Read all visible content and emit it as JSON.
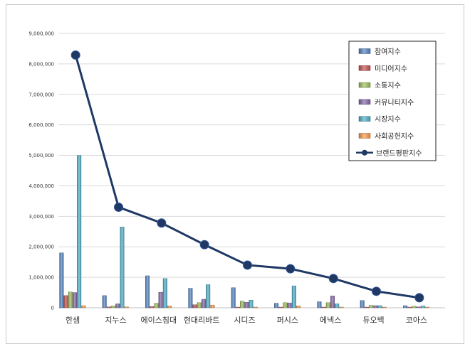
{
  "chart_data": {
    "type": "bar",
    "categories": [
      "한샘",
      "지누스",
      "에이스침대",
      "현대리바트",
      "시디즈",
      "퍼시스",
      "에넥스",
      "듀오백",
      "코아스"
    ],
    "ylim": [
      0,
      9000000
    ],
    "yticks": [
      "0",
      "1,000,000",
      "2,000,000",
      "3,000,000",
      "4,000,000",
      "5,000,000",
      "6,000,000",
      "7,000,000",
      "8,000,000",
      "9,000,000"
    ],
    "grid": true,
    "legend_position": "top-right",
    "series": [
      {
        "name": "참여지수",
        "color": "#4f81bd",
        "values": [
          1800000,
          400000,
          1050000,
          640000,
          660000,
          150000,
          200000,
          240000,
          70000
        ]
      },
      {
        "name": "미디어지수",
        "color": "#c0504d",
        "values": [
          400000,
          30000,
          40000,
          100000,
          20000,
          20000,
          20000,
          20000,
          10000
        ]
      },
      {
        "name": "소통지수",
        "color": "#9bbb59",
        "values": [
          520000,
          60000,
          150000,
          170000,
          220000,
          170000,
          170000,
          80000,
          50000
        ]
      },
      {
        "name": "커뮤니티지수",
        "color": "#8064a2",
        "values": [
          500000,
          130000,
          510000,
          280000,
          180000,
          160000,
          390000,
          70000,
          30000
        ]
      },
      {
        "name": "시장지수",
        "color": "#4bacc6",
        "values": [
          5000000,
          2650000,
          960000,
          760000,
          250000,
          720000,
          130000,
          70000,
          60000
        ]
      },
      {
        "name": "사회공헌지수",
        "color": "#f79646",
        "values": [
          70000,
          30000,
          60000,
          90000,
          20000,
          60000,
          20000,
          20000,
          20000
        ]
      }
    ],
    "line_series": {
      "name": "브랜드평판지수",
      "color": "#1f3864",
      "values": [
        8290000,
        3300000,
        2780000,
        2070000,
        1400000,
        1280000,
        960000,
        540000,
        330000
      ]
    }
  }
}
